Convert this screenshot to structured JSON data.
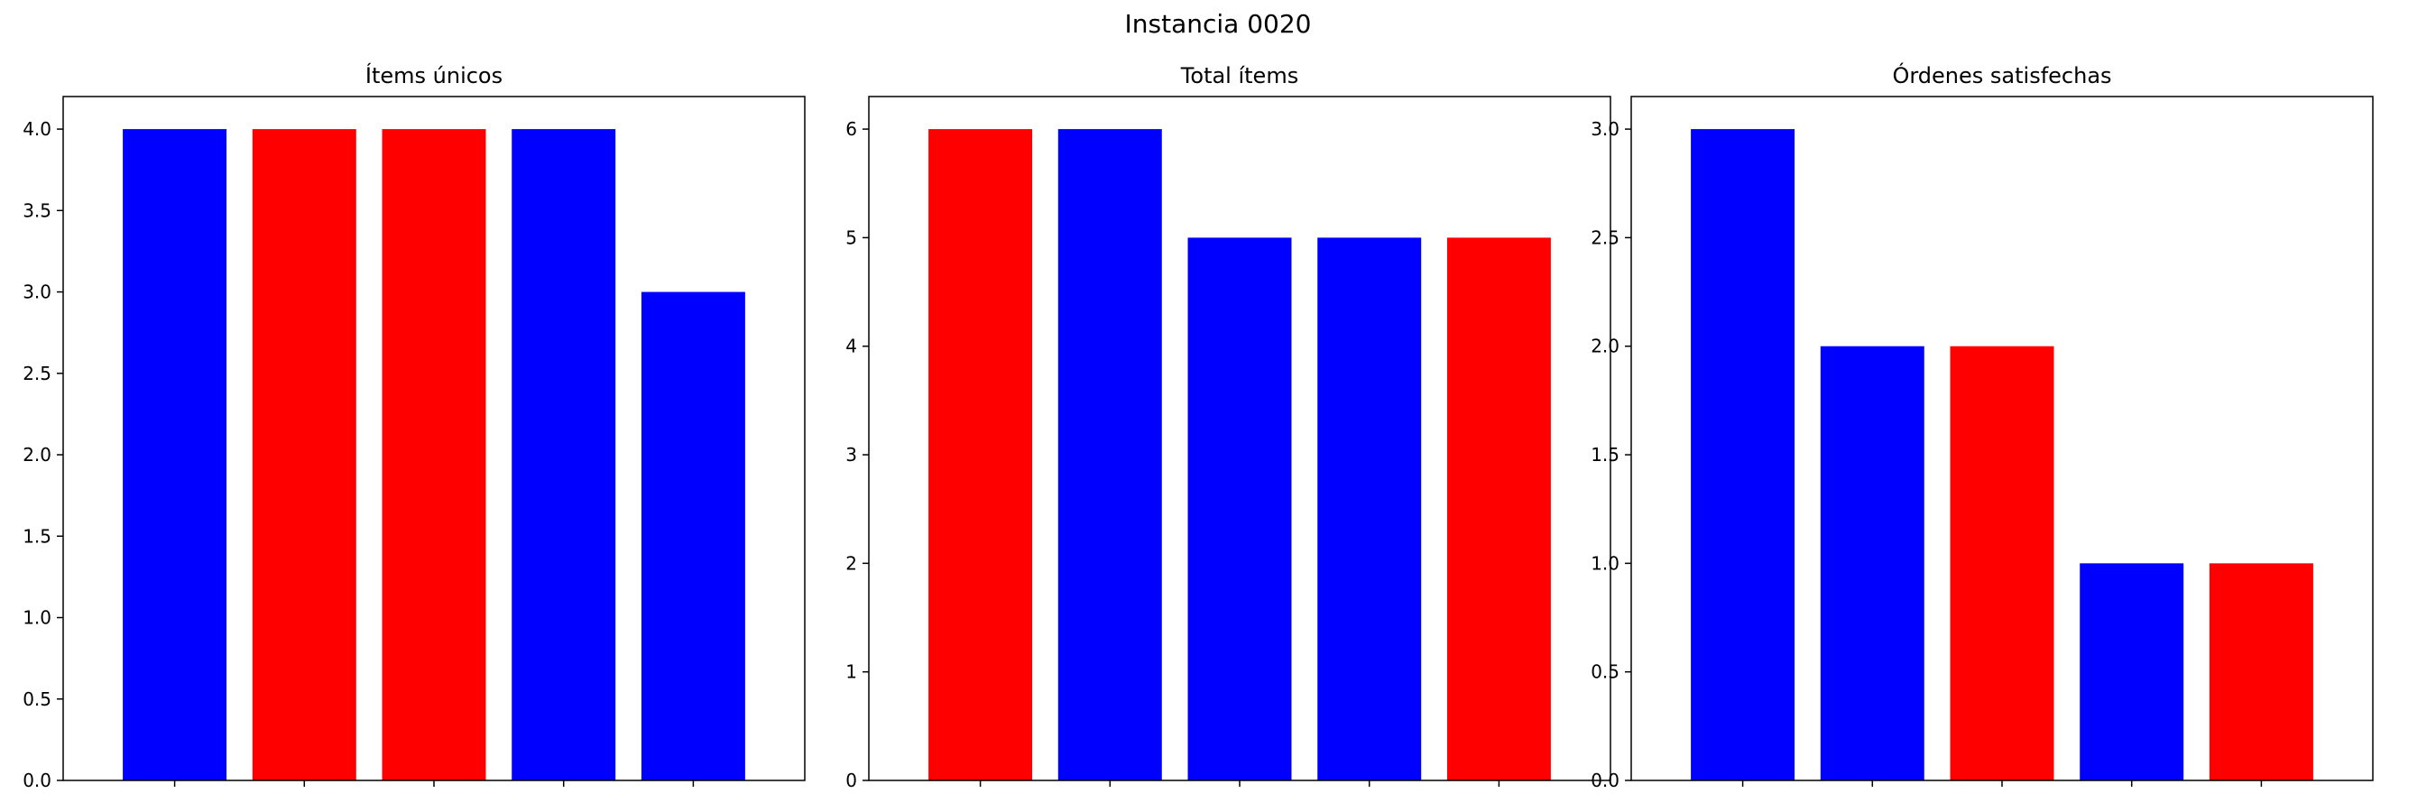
{
  "figure": {
    "title": "Instancia 0020"
  },
  "colors": {
    "blue": "#0000ff",
    "red": "#ff0000",
    "axis": "#000000"
  },
  "chart_data": [
    {
      "type": "bar",
      "title": "Ítems únicos",
      "xlabel": "",
      "ylabel": "",
      "ylim": [
        0,
        4.2
      ],
      "yticks": [
        0.0,
        0.5,
        1.0,
        1.5,
        2.0,
        2.5,
        3.0,
        3.5,
        4.0
      ],
      "ytick_decimals": 1,
      "values": [
        4,
        4,
        4,
        4,
        3
      ],
      "colors": [
        "blue",
        "red",
        "red",
        "blue",
        "blue"
      ],
      "grid": false,
      "legend": "none"
    },
    {
      "type": "bar",
      "title": "Total ítems",
      "xlabel": "",
      "ylabel": "",
      "ylim": [
        0,
        6.3
      ],
      "yticks": [
        0,
        1,
        2,
        3,
        4,
        5,
        6
      ],
      "ytick_decimals": 0,
      "values": [
        6,
        6,
        5,
        5,
        5
      ],
      "colors": [
        "red",
        "blue",
        "blue",
        "blue",
        "red"
      ],
      "grid": false,
      "legend": "none"
    },
    {
      "type": "bar",
      "title": "Órdenes satisfechas",
      "xlabel": "",
      "ylabel": "",
      "ylim": [
        0,
        3.15
      ],
      "yticks": [
        0.0,
        0.5,
        1.0,
        1.5,
        2.0,
        2.5,
        3.0
      ],
      "ytick_decimals": 1,
      "values": [
        3,
        2,
        2,
        1,
        1
      ],
      "colors": [
        "blue",
        "blue",
        "red",
        "blue",
        "red"
      ],
      "grid": false,
      "legend": "none"
    }
  ]
}
